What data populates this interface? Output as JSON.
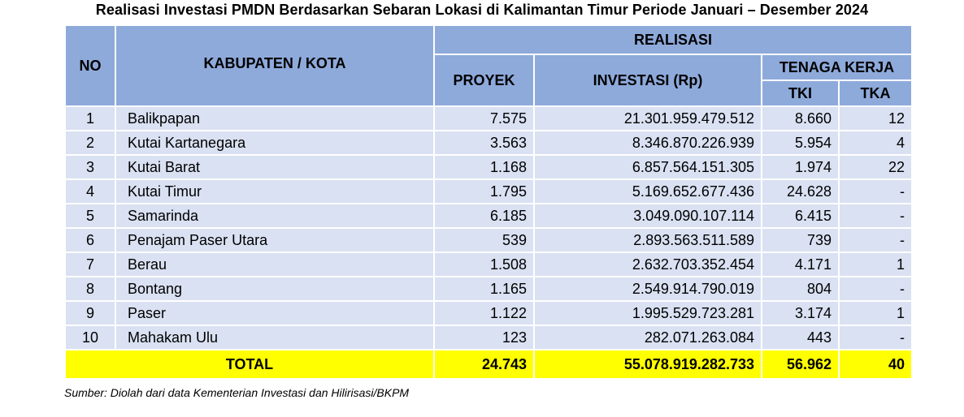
{
  "title": "Realisasi Investasi PMDN Berdasarkan Sebaran Lokasi di Kalimantan Timur Periode Januari – Desember 2024",
  "headers": {
    "no": "NO",
    "kabupaten": "KABUPATEN / KOTA",
    "realisasi": "REALISASI",
    "proyek": "PROYEK",
    "investasi": "INVESTASI (Rp)",
    "tenaga_kerja": "TENAGA KERJA",
    "tki": "TKI",
    "tka": "TKA"
  },
  "rows": [
    {
      "no": "1",
      "name": "Balikpapan",
      "proyek": "7.575",
      "investasi": "21.301.959.479.512",
      "tki": "8.660",
      "tka": "12"
    },
    {
      "no": "2",
      "name": "Kutai Kartanegara",
      "proyek": "3.563",
      "investasi": "8.346.870.226.939",
      "tki": "5.954",
      "tka": "4"
    },
    {
      "no": "3",
      "name": "Kutai Barat",
      "proyek": "1.168",
      "investasi": "6.857.564.151.305",
      "tki": "1.974",
      "tka": "22"
    },
    {
      "no": "4",
      "name": "Kutai Timur",
      "proyek": "1.795",
      "investasi": "5.169.652.677.436",
      "tki": "24.628",
      "tka": "-"
    },
    {
      "no": "5",
      "name": "Samarinda",
      "proyek": "6.185",
      "investasi": "3.049.090.107.114",
      "tki": "6.415",
      "tka": "-"
    },
    {
      "no": "6",
      "name": "Penajam Paser Utara",
      "proyek": "539",
      "investasi": "2.893.563.511.589",
      "tki": "739",
      "tka": "-"
    },
    {
      "no": "7",
      "name": "Berau",
      "proyek": "1.508",
      "investasi": "2.632.703.352.454",
      "tki": "4.171",
      "tka": "1"
    },
    {
      "no": "8",
      "name": "Bontang",
      "proyek": "1.165",
      "investasi": "2.549.914.790.019",
      "tki": "804",
      "tka": "-"
    },
    {
      "no": "9",
      "name": "Paser",
      "proyek": "1.122",
      "investasi": "1.995.529.723.281",
      "tki": "3.174",
      "tka": "1"
    },
    {
      "no": "10",
      "name": "Mahakam Ulu",
      "proyek": "123",
      "investasi": "282.071.263.084",
      "tki": "443",
      "tka": "-"
    }
  ],
  "total": {
    "label": "TOTAL",
    "proyek": "24.743",
    "investasi": "55.078.919.282.733",
    "tki": "56.962",
    "tka": "40"
  },
  "source": "Sumber: Diolah dari data Kementerian Investasi dan Hilirisasi/BKPM",
  "colors": {
    "header": "#8eaadb",
    "row": "#d9e1f2",
    "total": "#ffff00"
  }
}
